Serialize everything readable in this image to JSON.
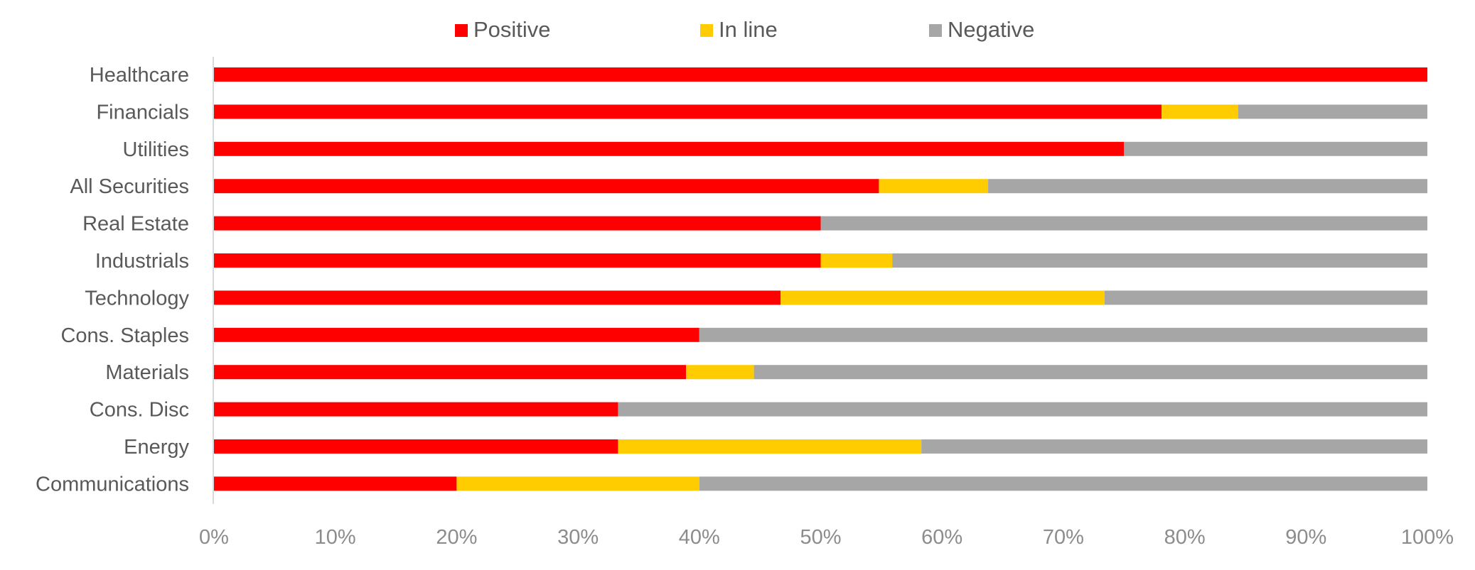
{
  "chart_data": {
    "type": "bar",
    "orientation": "horizontal",
    "stacked": true,
    "percent_stacked": true,
    "categories": [
      "Healthcare",
      "Financials",
      "Utilities",
      "All Securities",
      "Real Estate",
      "Industrials",
      "Technology",
      "Cons. Staples",
      "Materials",
      "Cons. Disc",
      "Energy",
      "Communications"
    ],
    "series": [
      {
        "name": "Positive",
        "color": "#ff0000",
        "values": [
          100,
          78.1,
          75,
          54.8,
          50,
          50,
          46.7,
          40,
          38.9,
          33.3,
          33.3,
          20
        ]
      },
      {
        "name": "In line",
        "color": "#ffcc00",
        "values": [
          0,
          6.3,
          0,
          9.0,
          0,
          5.9,
          26.7,
          0,
          5.6,
          0,
          25.0,
          20
        ]
      },
      {
        "name": "Negative",
        "color": "#a6a6a6",
        "values": [
          0,
          15.6,
          25,
          36.2,
          50,
          44.1,
          26.6,
          60,
          55.5,
          66.7,
          41.7,
          60
        ]
      }
    ],
    "x_ticks": [
      "0%",
      "10%",
      "20%",
      "30%",
      "40%",
      "50%",
      "60%",
      "70%",
      "80%",
      "90%",
      "100%"
    ],
    "xlim": [
      0,
      100
    ],
    "title": "",
    "xlabel": "",
    "ylabel": "",
    "grid": false,
    "legend_position": "top"
  }
}
